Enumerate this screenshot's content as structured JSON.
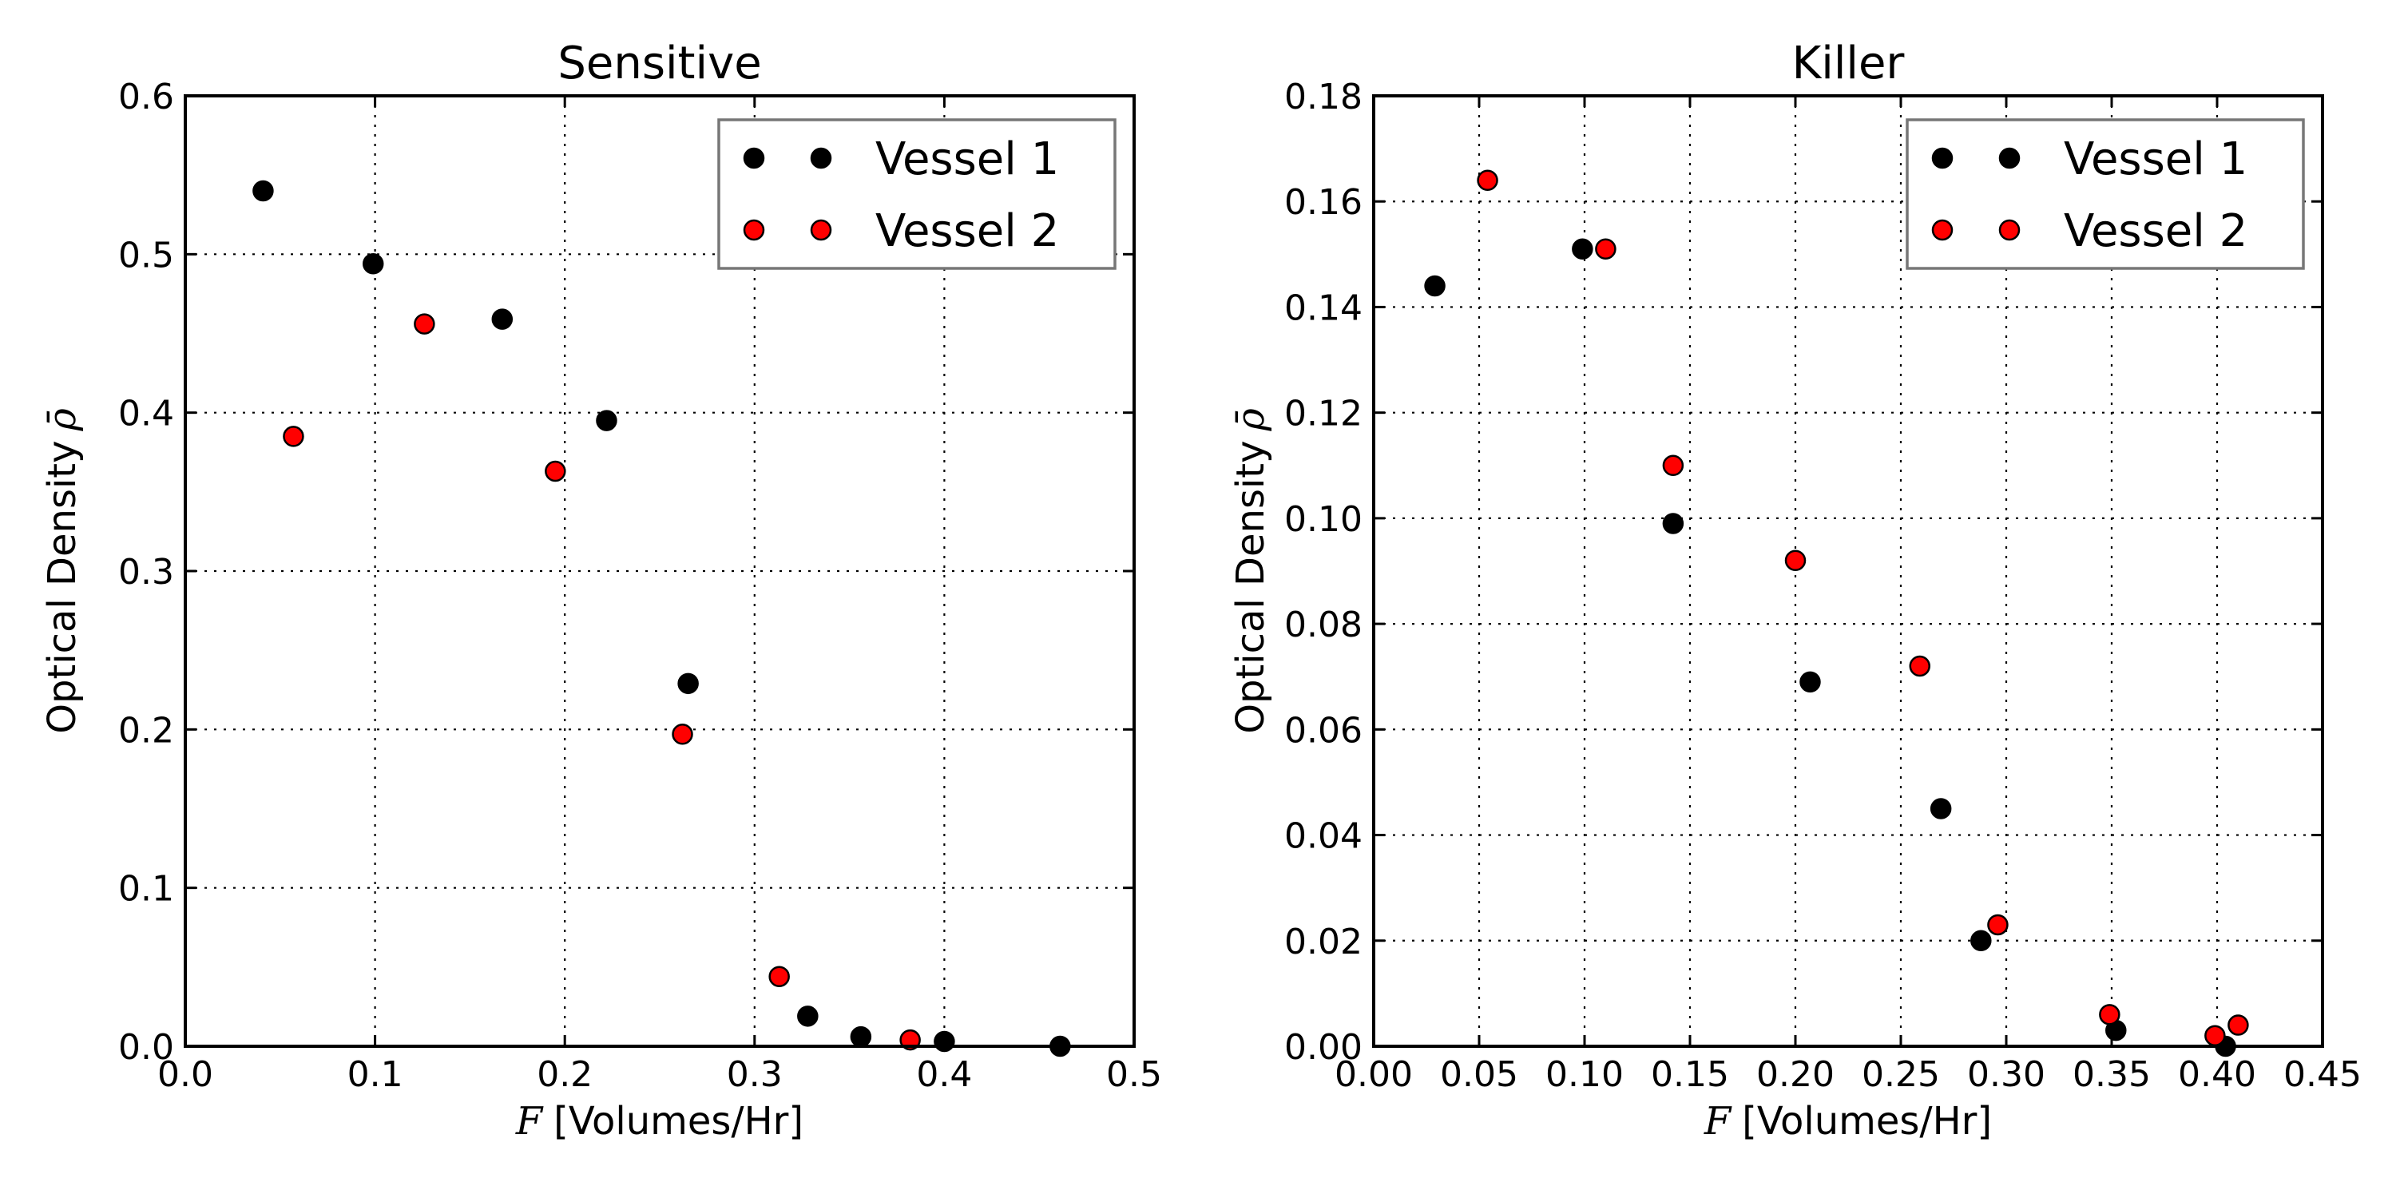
{
  "chart_data": [
    {
      "type": "scatter",
      "title": "Sensitive",
      "xlabel_var": "F",
      "xlabel": "[Volumes/Hr]",
      "ylabel": "Optical Density",
      "ylabel_symbol": "ρ̄",
      "xlim": [
        0.0,
        0.5
      ],
      "ylim": [
        0.0,
        0.6
      ],
      "xticks": [
        "0.0",
        "0.1",
        "0.2",
        "0.3",
        "0.4",
        "0.5"
      ],
      "yticks": [
        "0.0",
        "0.1",
        "0.2",
        "0.3",
        "0.4",
        "0.5",
        "0.6"
      ],
      "grid": true,
      "legend_position": "top-right",
      "series": [
        {
          "name": "Vessel 1",
          "color": "#000000",
          "x": [
            0.041,
            0.099,
            0.167,
            0.222,
            0.265,
            0.328,
            0.356,
            0.4,
            0.461
          ],
          "y": [
            0.54,
            0.494,
            0.459,
            0.395,
            0.229,
            0.019,
            0.006,
            0.003,
            0.0
          ]
        },
        {
          "name": "Vessel 2",
          "color": "#ff0000",
          "x": [
            0.057,
            0.126,
            0.195,
            0.262,
            0.313,
            0.382
          ],
          "y": [
            0.385,
            0.456,
            0.363,
            0.197,
            0.044,
            0.004
          ]
        }
      ]
    },
    {
      "type": "scatter",
      "title": "Killer",
      "xlabel_var": "F",
      "xlabel": "[Volumes/Hr]",
      "ylabel": "Optical Density",
      "ylabel_symbol": "ρ̄",
      "xlim": [
        0.0,
        0.45
      ],
      "ylim": [
        0.0,
        0.18
      ],
      "xticks": [
        "0.00",
        "0.05",
        "0.10",
        "0.15",
        "0.20",
        "0.25",
        "0.30",
        "0.35",
        "0.40",
        "0.45"
      ],
      "yticks": [
        "0.00",
        "0.02",
        "0.04",
        "0.06",
        "0.08",
        "0.10",
        "0.12",
        "0.14",
        "0.16",
        "0.18"
      ],
      "grid": true,
      "legend_position": "top-right",
      "series": [
        {
          "name": "Vessel 1",
          "color": "#000000",
          "x": [
            0.029,
            0.099,
            0.142,
            0.207,
            0.269,
            0.288,
            0.352,
            0.404
          ],
          "y": [
            0.144,
            0.151,
            0.099,
            0.069,
            0.045,
            0.02,
            0.003,
            0.0
          ]
        },
        {
          "name": "Vessel 2",
          "color": "#ff0000",
          "x": [
            0.054,
            0.11,
            0.142,
            0.2,
            0.259,
            0.296,
            0.349,
            0.399,
            0.41
          ],
          "y": [
            0.164,
            0.151,
            0.11,
            0.092,
            0.072,
            0.023,
            0.006,
            0.002,
            0.004
          ]
        }
      ]
    }
  ]
}
